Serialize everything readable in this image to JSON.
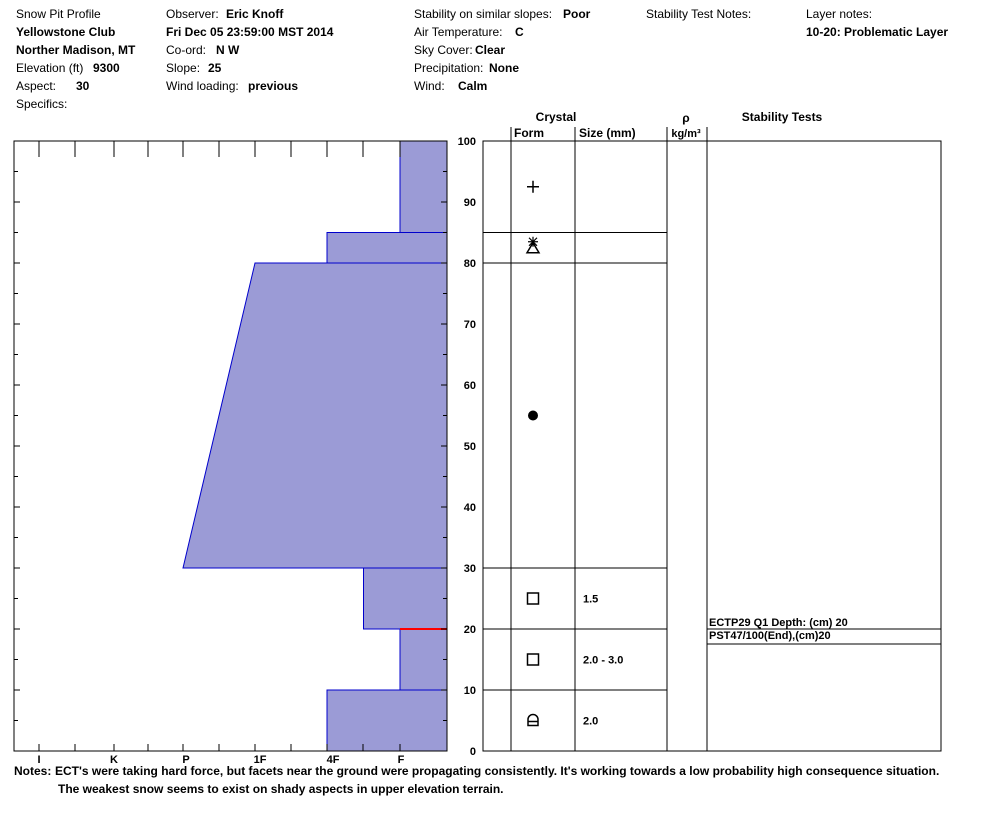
{
  "header": {
    "col1": {
      "profile_title": "Snow Pit Profile",
      "location": "Yellowstone Club",
      "area": "Norther Madison, MT",
      "elevation_label": "Elevation (ft)",
      "elevation_value": "9300",
      "aspect_label": "Aspect:",
      "aspect_value": "30",
      "specifics_label": "Specifics:"
    },
    "col2": {
      "observer_label": "Observer:",
      "observer_value": "Eric Knoff",
      "datetime": "Fri Dec 05 23:59:00 MST 2014",
      "coord_label": "Co-ord:",
      "coord_value": "N  W",
      "slope_label": "Slope:",
      "slope_value": "25",
      "wind_loading_label": "Wind loading:",
      "wind_loading_value": "previous"
    },
    "col3": {
      "stability_label": "Stability on similar slopes:",
      "stability_value": "Poor",
      "air_temp_label": "Air Temperature:",
      "air_temp_value": "C",
      "sky_label": "Sky Cover:",
      "sky_value": "Clear",
      "precip_label": "Precipitation:",
      "precip_value": "None",
      "wind_label": "Wind:",
      "wind_value": "Calm"
    },
    "col4": {
      "stability_notes_label": "Stability Test Notes:"
    },
    "col5": {
      "layer_notes_label": "Layer notes:",
      "layer_notes_value": "10-20: Problematic Layer"
    }
  },
  "columns": {
    "crystal": "Crystal",
    "form": "Form",
    "size": "Size (mm)",
    "density_symbol": "ρ",
    "density_unit": "kg/m³",
    "stability_tests": "Stability Tests"
  },
  "notes": {
    "label": "Notes:",
    "line1": "ECT's were taking hard force, but facets near the ground were propagating consistently. It's working towards a low probability high consequence situation.",
    "line2": "The weakest snow seems to exist on shady aspects in upper elevation terrain."
  },
  "colors": {
    "hardness_fill": "#9b9bd6",
    "hardness_edge": "#0000cc",
    "weak_layer": "#ff0000",
    "grid": "#000000"
  },
  "chart_data": {
    "type": "snow-profile",
    "depth_axis": {
      "min": 0,
      "max": 100,
      "ticks": [
        0,
        10,
        20,
        30,
        40,
        50,
        60,
        70,
        80,
        90,
        100
      ],
      "unit": "cm"
    },
    "hardness_scale": [
      "F",
      "4F",
      "1F",
      "P",
      "K",
      "I"
    ],
    "hardness_tick_labels": [
      "I",
      "K",
      "P",
      "1F",
      "4F",
      "F"
    ],
    "hardness_profile": [
      {
        "bottom": 0,
        "top": 10,
        "hardness_bottom": "4F",
        "hardness_top": "4F"
      },
      {
        "bottom": 10,
        "top": 20,
        "hardness_bottom": "F",
        "hardness_top": "F"
      },
      {
        "bottom": 20,
        "top": 30,
        "hardness_bottom": "4F-F",
        "hardness_top": "4F-F"
      },
      {
        "bottom": 30,
        "top": 80,
        "hardness_bottom": "P",
        "hardness_top": "1F"
      },
      {
        "bottom": 80,
        "top": 85,
        "hardness_bottom": "4F",
        "hardness_top": "4F"
      },
      {
        "bottom": 85,
        "top": 100,
        "hardness_bottom": "F",
        "hardness_top": "F"
      }
    ],
    "layer_boundaries": [
      10,
      20,
      30,
      80,
      85
    ],
    "weak_layer_depth": 20,
    "crystals": [
      {
        "depth": 92.5,
        "form": "precipitation-particles",
        "symbol": "+",
        "size": ""
      },
      {
        "depth": 82.5,
        "form": "decomposing-fragmented",
        "symbol": "⋇",
        "size": ""
      },
      {
        "depth": 82.5,
        "form": "depth-hoar",
        "symbol": "△",
        "size": ""
      },
      {
        "depth": 55,
        "form": "rounded-grains",
        "symbol": "●",
        "size": ""
      },
      {
        "depth": 25,
        "form": "faceted-crystals",
        "symbol": "□",
        "size": "1.5"
      },
      {
        "depth": 15,
        "form": "faceted-crystals",
        "symbol": "□",
        "size": "2.0 - 3.0"
      },
      {
        "depth": 5,
        "form": "faceted-rounding",
        "symbol": "⊟",
        "size": "2.0"
      }
    ],
    "stability_tests": [
      {
        "depth": 20,
        "text": "ECTP29 Q1 Depth: (cm) 20"
      },
      {
        "depth": 20,
        "text": "PST47/100(End),(cm)20"
      }
    ]
  }
}
